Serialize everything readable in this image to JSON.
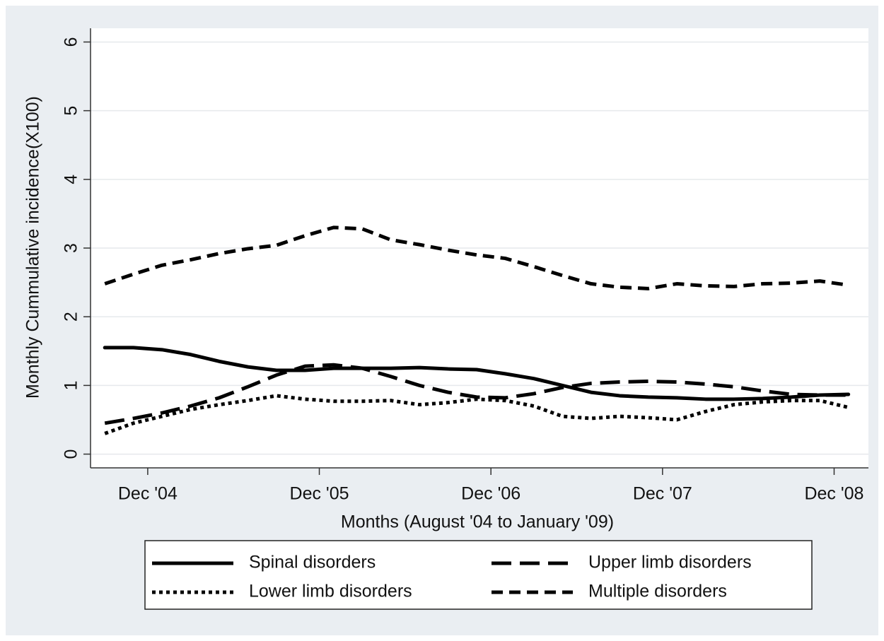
{
  "chart_data": {
    "type": "line",
    "x_label": "Months (August '04 to January '09)",
    "y_label": "Monthly Cummulative incidence(X100)",
    "x": [
      1,
      3,
      5,
      7,
      9,
      11,
      13,
      15,
      17,
      19,
      21,
      23,
      25,
      27,
      29,
      31,
      33,
      35,
      37,
      39,
      41,
      43,
      45,
      47,
      49,
      51,
      53
    ],
    "xlim": [
      0,
      54.4
    ],
    "xticks": [
      {
        "value": 4,
        "label": "Dec '04"
      },
      {
        "value": 16,
        "label": "Dec '05"
      },
      {
        "value": 28,
        "label": "Dec '06"
      },
      {
        "value": 40,
        "label": "Dec '07"
      },
      {
        "value": 52,
        "label": "Dec '08"
      }
    ],
    "ylim": [
      -0.2,
      6.2
    ],
    "yticks": [
      0,
      1,
      2,
      3,
      4,
      5,
      6
    ],
    "grid": true,
    "legend": "bottom",
    "series": [
      {
        "name": "Spinal disorders",
        "color": "#000000",
        "line_style": "solid",
        "values": [
          1.55,
          1.55,
          1.52,
          1.45,
          1.35,
          1.27,
          1.22,
          1.22,
          1.25,
          1.25,
          1.25,
          1.26,
          1.24,
          1.23,
          1.17,
          1.1,
          1.0,
          0.9,
          0.85,
          0.83,
          0.82,
          0.8,
          0.8,
          0.81,
          0.83,
          0.86,
          0.87
        ]
      },
      {
        "name": "Upper limb disorders",
        "color": "#000000",
        "line_style": "long-dash",
        "values": [
          0.45,
          0.52,
          0.6,
          0.7,
          0.82,
          0.98,
          1.15,
          1.28,
          1.3,
          1.25,
          1.13,
          1.0,
          0.9,
          0.83,
          0.82,
          0.88,
          0.97,
          1.03,
          1.05,
          1.06,
          1.05,
          1.02,
          0.98,
          0.92,
          0.87,
          0.86,
          0.86
        ]
      },
      {
        "name": "Lower limb disorders",
        "color": "#000000",
        "line_style": "dotted",
        "values": [
          0.3,
          0.45,
          0.55,
          0.65,
          0.72,
          0.78,
          0.85,
          0.8,
          0.77,
          0.77,
          0.78,
          0.72,
          0.75,
          0.8,
          0.78,
          0.7,
          0.55,
          0.52,
          0.55,
          0.53,
          0.5,
          0.62,
          0.72,
          0.76,
          0.78,
          0.78,
          0.68
        ]
      },
      {
        "name": "Multiple disorders",
        "color": "#000000",
        "line_style": "dash",
        "values": [
          2.48,
          2.62,
          2.75,
          2.83,
          2.92,
          2.99,
          3.04,
          3.18,
          3.3,
          3.28,
          3.12,
          3.05,
          2.97,
          2.9,
          2.85,
          2.73,
          2.6,
          2.48,
          2.43,
          2.41,
          2.48,
          2.45,
          2.44,
          2.48,
          2.49,
          2.52,
          2.46
        ]
      }
    ]
  }
}
